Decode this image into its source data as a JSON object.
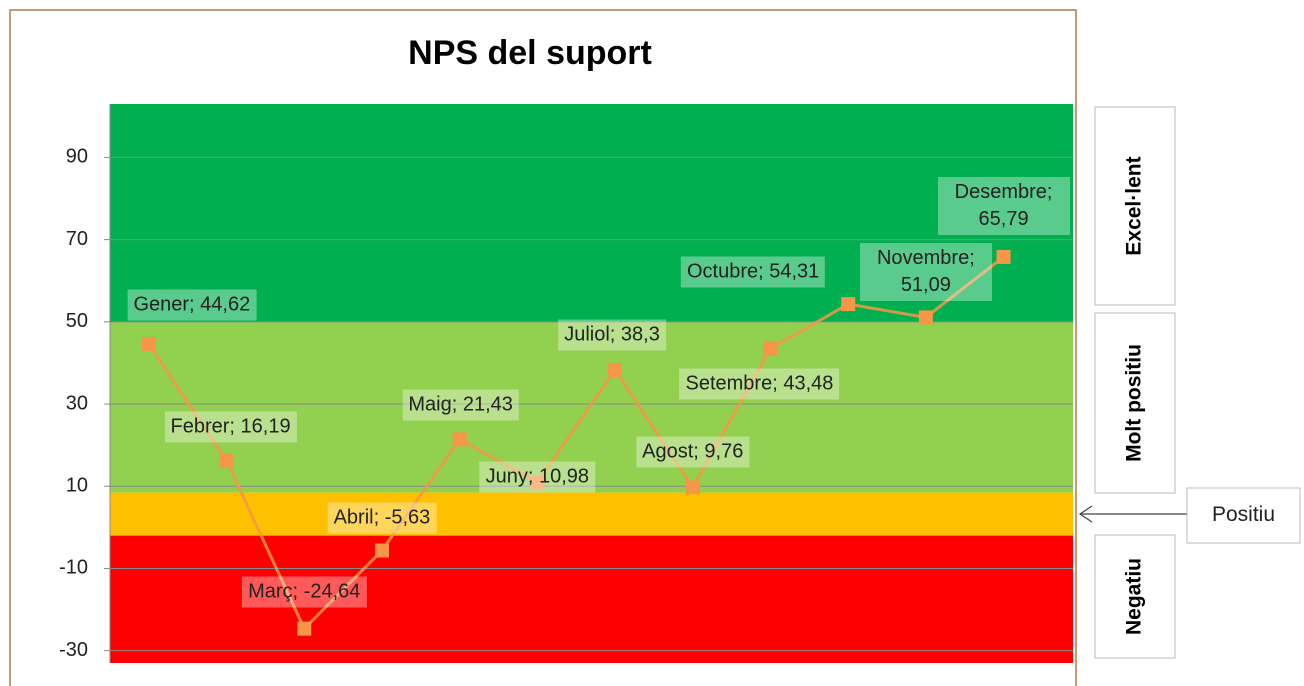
{
  "chart_data": {
    "type": "line",
    "title": "NPS del suport",
    "categories": [
      "Gener",
      "Febrer",
      "Març",
      "Abril",
      "Maig",
      "Juny",
      "Juliol",
      "Agost",
      "Setembre",
      "Octubre",
      "Novembre",
      "Desembre"
    ],
    "series": [
      {
        "name": "NPS",
        "color": "#f79646",
        "values": [
          44.62,
          16.19,
          -24.64,
          -5.63,
          21.43,
          10.98,
          38.3,
          9.76,
          43.48,
          54.31,
          51.09,
          65.79
        ],
        "value_labels": [
          "Gener; 44,62",
          "Febrer; 16,19",
          "Març; -24,64",
          "Abril; -5,63",
          "Maig; 21,43",
          "Juny; 10,98",
          "Juliol; 38,3",
          "Agost; 9,76",
          "Setembre; 43,48",
          "Octubre; 54,31",
          "Novembre; 51,09",
          "Desembre; 65,79"
        ]
      }
    ],
    "ylim": [
      -33,
      103
    ],
    "yticks": [
      -30,
      -10,
      10,
      30,
      50,
      70,
      90
    ],
    "grid": true,
    "bands": [
      {
        "name": "Negatiu",
        "from": -33,
        "to": -2,
        "color": "#ff0000"
      },
      {
        "name": "Positiu",
        "from": -2,
        "to": 8.5,
        "color": "#ffc000"
      },
      {
        "name": "Molt positiu",
        "from": 8.5,
        "to": 50,
        "color": "#92d050"
      },
      {
        "name": "Excel·lent",
        "from": 50,
        "to": 103,
        "color": "#00b050"
      }
    ]
  }
}
